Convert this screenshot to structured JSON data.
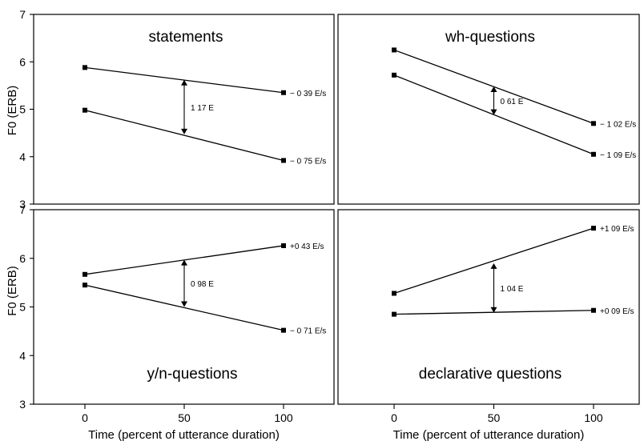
{
  "chart_data": [
    {
      "type": "line",
      "title": "statements",
      "x": [
        0,
        100
      ],
      "xlim": [
        -20,
        125
      ],
      "ylim": [
        3,
        7
      ],
      "xticks": [],
      "yticks": [
        "5",
        "6",
        "7"
      ],
      "xlabel": "",
      "ylabel": "",
      "series": [
        {
          "values": [
            5.88,
            5.35
          ],
          "slope_label": "− 0 39 E/s"
        },
        {
          "values": [
            4.98,
            3.92
          ],
          "slope_label": "− 0 75 E/s"
        }
      ],
      "gap": {
        "x": 50,
        "from": 4.47,
        "to": 5.62,
        "label": "1 17 E"
      }
    },
    {
      "type": "line",
      "title": "wh-questions",
      "x": [
        0,
        100
      ],
      "xlim": [
        -20,
        125
      ],
      "ylim": [
        3,
        7
      ],
      "xticks": [],
      "yticks": [],
      "xlabel": "",
      "ylabel": "",
      "series": [
        {
          "values": [
            6.25,
            4.7
          ],
          "slope_label": "− 1 02 E/s"
        },
        {
          "values": [
            5.72,
            4.05
          ],
          "slope_label": "− 1 09 E/s"
        }
      ],
      "gap": {
        "x": 50,
        "from": 4.88,
        "to": 5.48,
        "label": "0 61 E"
      }
    },
    {
      "type": "line",
      "title": "y/n-questions",
      "x": [
        0,
        100
      ],
      "xlim": [
        -20,
        125
      ],
      "ylim": [
        3,
        7
      ],
      "xticks": [
        "0",
        "50",
        "100"
      ],
      "yticks": [
        "3",
        "4",
        "5",
        "6",
        "7"
      ],
      "xlabel": "Time (percent of utterance duration)",
      "ylabel": "F0 (ERB)",
      "series": [
        {
          "values": [
            5.67,
            6.26
          ],
          "slope_label": "+0 43 E/s"
        },
        {
          "values": [
            5.45,
            4.52
          ],
          "slope_label": "− 0 71 E/s"
        }
      ],
      "gap": {
        "x": 50,
        "from": 5.0,
        "to": 5.97,
        "label": "0 98 E"
      }
    },
    {
      "type": "line",
      "title": "declarative questions",
      "x": [
        0,
        100
      ],
      "xlim": [
        -20,
        125
      ],
      "ylim": [
        3,
        7
      ],
      "xticks": [
        "0",
        "50",
        "100"
      ],
      "yticks": [],
      "xlabel": "Time (percent of utterance duration)",
      "ylabel": "",
      "series": [
        {
          "values": [
            5.28,
            6.62
          ],
          "slope_label": "+1 09 E/s"
        },
        {
          "values": [
            4.85,
            4.93
          ],
          "slope_label": "+0 09 E/s"
        }
      ],
      "gap": {
        "x": 50,
        "from": 4.88,
        "to": 5.9,
        "label": "1 04 E"
      }
    }
  ],
  "shared": {
    "top_ylabel": "F0 (ERB)",
    "top_yticks_left": [
      "3",
      "4"
    ]
  }
}
